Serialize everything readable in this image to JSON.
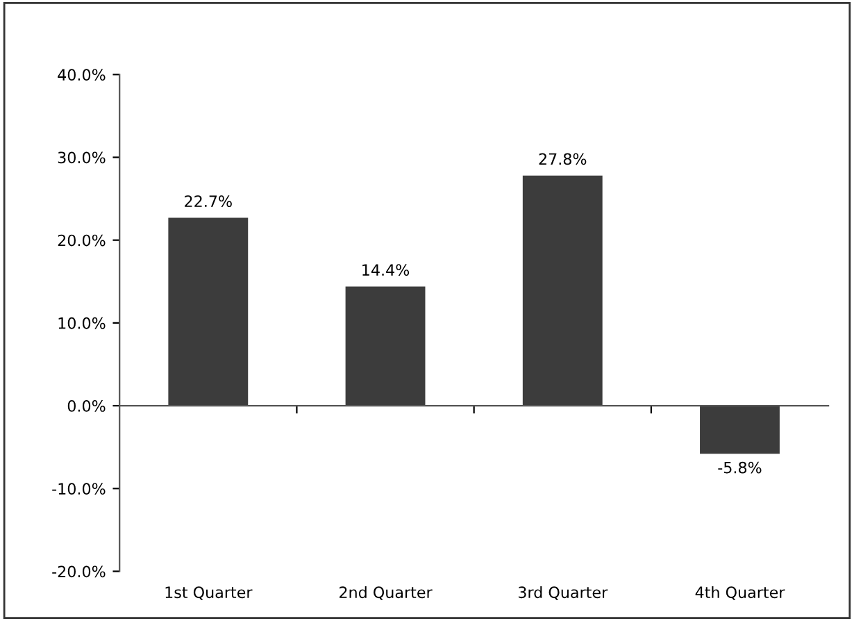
{
  "chart_data": {
    "type": "bar",
    "categories": [
      "1st Quarter",
      "2nd Quarter",
      "3rd Quarter",
      "4th Quarter"
    ],
    "values": [
      22.7,
      14.4,
      27.8,
      -5.8
    ],
    "color": "#3c3c3c",
    "value_labels": [
      "22.7%",
      "14.4%",
      "27.8%",
      "-5.8%"
    ],
    "ylim": [
      -20,
      40
    ],
    "yticks": [
      {
        "value": -20,
        "label": "-20.0%"
      },
      {
        "value": -10,
        "label": "-10.0%"
      },
      {
        "value": 0,
        "label": "0.0%"
      },
      {
        "value": 10,
        "label": "10.0%"
      },
      {
        "value": 20,
        "label": "20.0%"
      },
      {
        "value": 30,
        "label": "30.0%"
      },
      {
        "value": 40,
        "label": "40.0%"
      }
    ],
    "legend": false
  }
}
